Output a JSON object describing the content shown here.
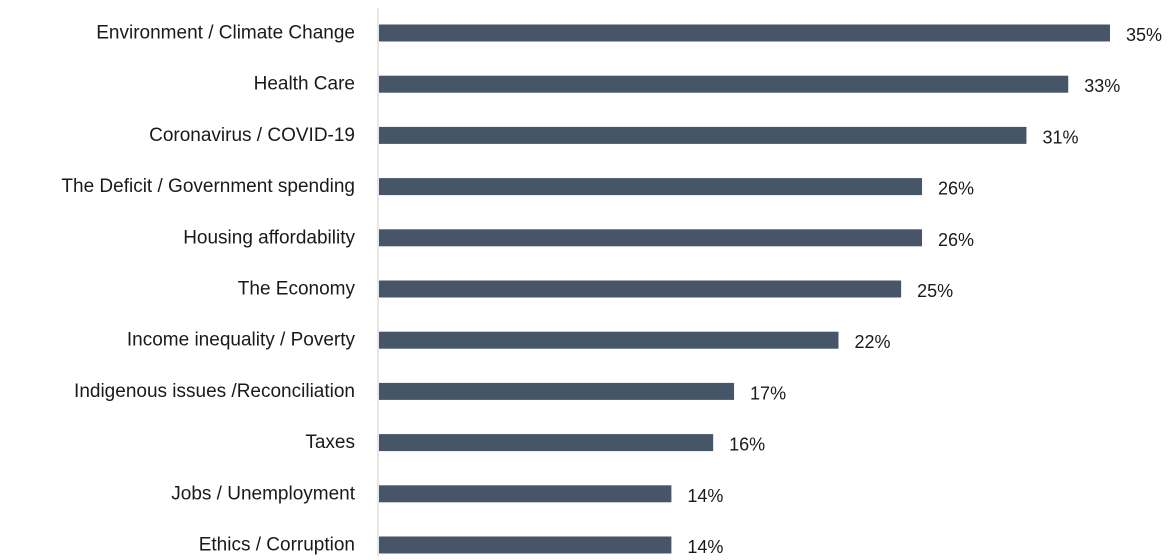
{
  "chart_data": {
    "type": "bar",
    "orientation": "horizontal",
    "categories": [
      "Environment / Climate Change",
      "Health Care",
      "Coronavirus / COVID-19",
      "The Deficit / Government spending",
      "Housing affordability",
      "The Economy",
      "Income inequality / Poverty",
      "Indigenous issues /Reconciliation",
      "Taxes",
      "Jobs / Unemployment",
      "Ethics / Corruption"
    ],
    "values": [
      35,
      33,
      31,
      26,
      26,
      25,
      22,
      17,
      16,
      14,
      14
    ],
    "value_labels": [
      "35%",
      "33%",
      "31%",
      "26%",
      "26%",
      "25%",
      "22%",
      "17%",
      "16%",
      "14%",
      "14%"
    ],
    "title": "",
    "xlabel": "",
    "ylabel": "",
    "xlim": [
      0,
      35
    ],
    "grid": false,
    "legend": "none",
    "bar_color": "#475569",
    "axis_color": "#cfcfcf"
  }
}
